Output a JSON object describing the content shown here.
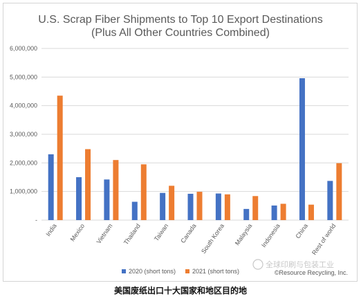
{
  "caption": "美国废纸出口十大国家和地区目的地",
  "watermark": "全球印刷与包装工业",
  "chart_data": {
    "type": "bar",
    "title": "U.S. Scrap Fiber Shipments to Top 10 Export Destinations",
    "subtitle": "(Plus All Other Countries Combined)",
    "categories": [
      "India",
      "Mexico",
      "Vietnam",
      "Thailand",
      "Taiwan",
      "Canada",
      "South Korea",
      "Malaysia",
      "Indonesia",
      "China",
      "Rest of world"
    ],
    "series": [
      {
        "name": "2020 (short tons)",
        "color": "#4472c4",
        "values": [
          2300000,
          1500000,
          1420000,
          640000,
          950000,
          920000,
          930000,
          390000,
          510000,
          4960000,
          1370000
        ]
      },
      {
        "name": "2021 (short tons)",
        "color": "#ed7d31",
        "values": [
          4350000,
          2480000,
          2100000,
          1950000,
          1200000,
          990000,
          900000,
          840000,
          570000,
          540000,
          1990000
        ]
      }
    ],
    "ylim": [
      0,
      6000000
    ],
    "yticks": [
      "-",
      "1,000,000",
      "2,000,000",
      "3,000,000",
      "4,000,000",
      "5,000,000",
      "6,000,000"
    ],
    "ytick_values": [
      0,
      1000000,
      2000000,
      3000000,
      4000000,
      5000000,
      6000000
    ],
    "grid": true,
    "legend": "bottom",
    "credit": "©Resource Recycling, Inc.",
    "xlabel": "",
    "ylabel": ""
  }
}
